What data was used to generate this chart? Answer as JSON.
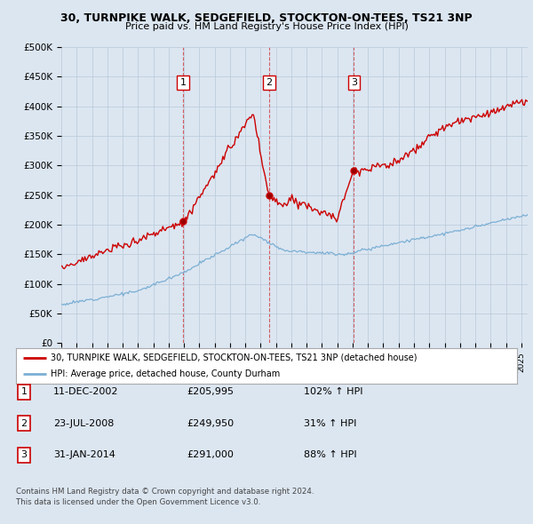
{
  "title": "30, TURNPIKE WALK, SEDGEFIELD, STOCKTON-ON-TEES, TS21 3NP",
  "subtitle": "Price paid vs. HM Land Registry's House Price Index (HPI)",
  "ylabel_ticks": [
    "£0",
    "£50K",
    "£100K",
    "£150K",
    "£200K",
    "£250K",
    "£300K",
    "£350K",
    "£400K",
    "£450K",
    "£500K"
  ],
  "ytick_values": [
    0,
    50000,
    100000,
    150000,
    200000,
    250000,
    300000,
    350000,
    400000,
    450000,
    500000
  ],
  "x_start_year": 1995,
  "x_end_year": 2025,
  "sale_dates": [
    "2002-12-11",
    "2008-07-23",
    "2014-01-31"
  ],
  "sale_prices": [
    205995,
    249950,
    291000
  ],
  "sale_labels": [
    "1",
    "2",
    "3"
  ],
  "sale_pct": [
    "102% ↑ HPI",
    "31% ↑ HPI",
    "88% ↑ HPI"
  ],
  "sale_date_labels": [
    "11-DEC-2002",
    "23-JUL-2008",
    "31-JAN-2014"
  ],
  "price_color": "#cc0000",
  "hpi_color": "#7bafd4",
  "vline_color": "#cc0000",
  "legend_line1": "30, TURNPIKE WALK, SEDGEFIELD, STOCKTON-ON-TEES, TS21 3NP (detached house)",
  "legend_line2": "HPI: Average price, detached house, County Durham",
  "footer1": "Contains HM Land Registry data © Crown copyright and database right 2024.",
  "footer2": "This data is licensed under the Open Government Licence v3.0.",
  "background_color": "#dce6f1",
  "plot_bg_color": "#dce6f1",
  "legend_bg_color": "#ffffff",
  "table_row1": [
    "1",
    "11-DEC-2002",
    "£205,995",
    "102% ↑ HPI"
  ],
  "table_row2": [
    "2",
    "23-JUL-2008",
    "£249,950",
    "31% ↑ HPI"
  ],
  "table_row3": [
    "3",
    "31-JAN-2014",
    "£291,000",
    "88% ↑ HPI"
  ]
}
